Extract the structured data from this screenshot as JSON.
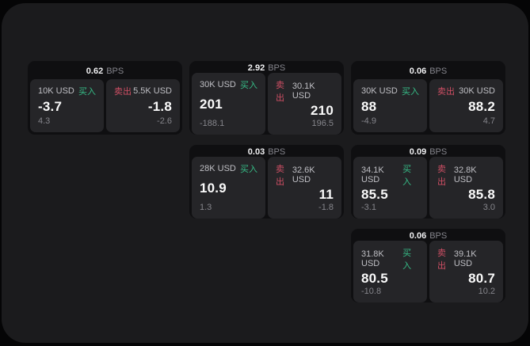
{
  "labels": {
    "bps": "BPS",
    "buy": "买入",
    "sell": "卖出"
  },
  "colors": {
    "buy_accent": "#36bd87",
    "sell_accent": "#cf4f64",
    "panel_bg": "#1b1b1d",
    "card_bg": "#0f0f11",
    "tile_bg": "#252528"
  },
  "cards": [
    {
      "bps": "0.62",
      "buy_notional": "10K USD",
      "buy_value": "-3.7",
      "buy_sub": "4.3",
      "sell_notional": "5.5K USD",
      "sell_value": "-1.8",
      "sell_sub": "-2.6"
    },
    {
      "bps": "2.92",
      "buy_notional": "30K USD",
      "buy_value": "201",
      "buy_sub": "-188.1",
      "sell_notional": "30.1K USD",
      "sell_value": "210",
      "sell_sub": "196.5"
    },
    {
      "bps": "0.06",
      "buy_notional": "30K USD",
      "buy_value": "88",
      "buy_sub": "-4.9",
      "sell_notional": "30K USD",
      "sell_value": "88.2",
      "sell_sub": "4.7"
    },
    {
      "bps": "0.03",
      "buy_notional": "28K USD",
      "buy_value": "10.9",
      "buy_sub": "1.3",
      "sell_notional": "32.6K USD",
      "sell_value": "11",
      "sell_sub": "-1.8"
    },
    {
      "bps": "0.09",
      "buy_notional": "34.1K USD",
      "buy_value": "85.5",
      "buy_sub": "-3.1",
      "sell_notional": "32.8K USD",
      "sell_value": "85.8",
      "sell_sub": "3.0"
    },
    {
      "bps": "0.06",
      "buy_notional": "31.8K USD",
      "buy_value": "80.5",
      "buy_sub": "-10.8",
      "sell_notional": "39.1K USD",
      "sell_value": "80.7",
      "sell_sub": "10.2"
    }
  ]
}
